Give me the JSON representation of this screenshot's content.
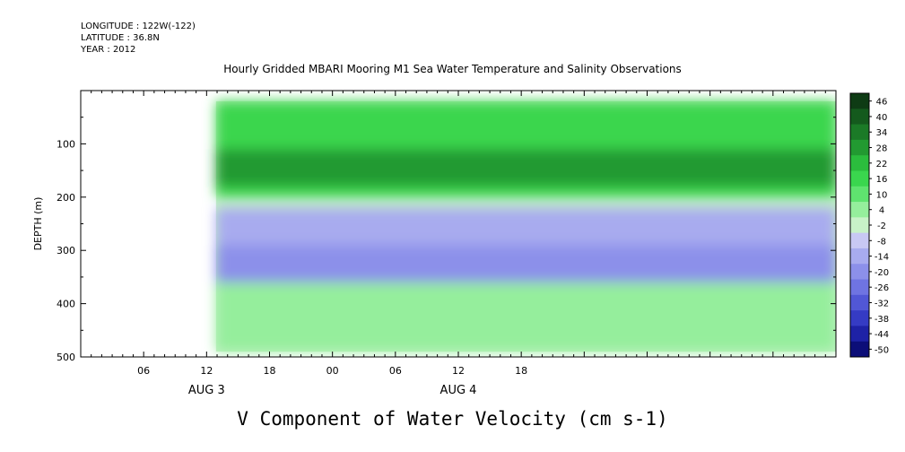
{
  "header": {
    "longitude": "LONGITUDE : 122W(-122)",
    "latitude": "LATITUDE : 36.8N",
    "year": "YEAR : 2012"
  },
  "chart_data": {
    "type": "heatmap",
    "title": "Hourly Gridded MBARI Mooring M1 Sea Water Temperature and Salinity Observations",
    "caption": "V Component of Water Velocity (cm s-1)",
    "ylabel": "DEPTH (m)",
    "ylim": [
      500,
      0
    ],
    "y_ticks": [
      100,
      200,
      300,
      400,
      500
    ],
    "x_range_hours": [
      0,
      72
    ],
    "x_tick_labels": [
      {
        "hour": 6,
        "label": "06"
      },
      {
        "hour": 12,
        "label": "12"
      },
      {
        "hour": 18,
        "label": "18"
      },
      {
        "hour": 24,
        "label": "00"
      },
      {
        "hour": 30,
        "label": "06"
      },
      {
        "hour": 36,
        "label": "12"
      },
      {
        "hour": 42,
        "label": "18"
      }
    ],
    "date_labels": [
      {
        "hour": 12,
        "label": "AUG  3"
      },
      {
        "hour": 36,
        "label": "AUG  4"
      }
    ],
    "data_extent": {
      "hour_start": 12.9,
      "hour_end": 72,
      "depth_top": 20,
      "depth_bottom": 490
    },
    "colorbar": {
      "labels": [
        "46",
        "40",
        "34",
        "28",
        "22",
        "16",
        "10",
        "4",
        "-2",
        "-8",
        "-14",
        "-20",
        "-26",
        "-32",
        "-38",
        "-44",
        "-50"
      ],
      "colors": [
        "#0e3b14",
        "#145a1d",
        "#1b7a27",
        "#229a31",
        "#2bbd3d",
        "#3ad64e",
        "#5fe36f",
        "#95ee9c",
        "#c8f2c8",
        "#c8c8f4",
        "#a8abef",
        "#8c90ea",
        "#6f74e2",
        "#5157d6",
        "#353bc4",
        "#1e22a6",
        "#0c0e78"
      ]
    },
    "grid": false,
    "legend": "colorbar-right",
    "layers": [
      {
        "name": "upper",
        "depth_range": [
          20,
          200
        ],
        "value": 16
      },
      {
        "name": "upper-core",
        "depth_range": [
          110,
          180
        ],
        "value": 28
      },
      {
        "name": "deep",
        "depth_range": [
          220,
          490
        ],
        "value": -14
      },
      {
        "name": "deep-core",
        "depth_range": [
          290,
          380
        ],
        "value": -20
      },
      {
        "name": "lower-patch",
        "depth_range": [
          360,
          490
        ],
        "value": 6
      }
    ]
  }
}
